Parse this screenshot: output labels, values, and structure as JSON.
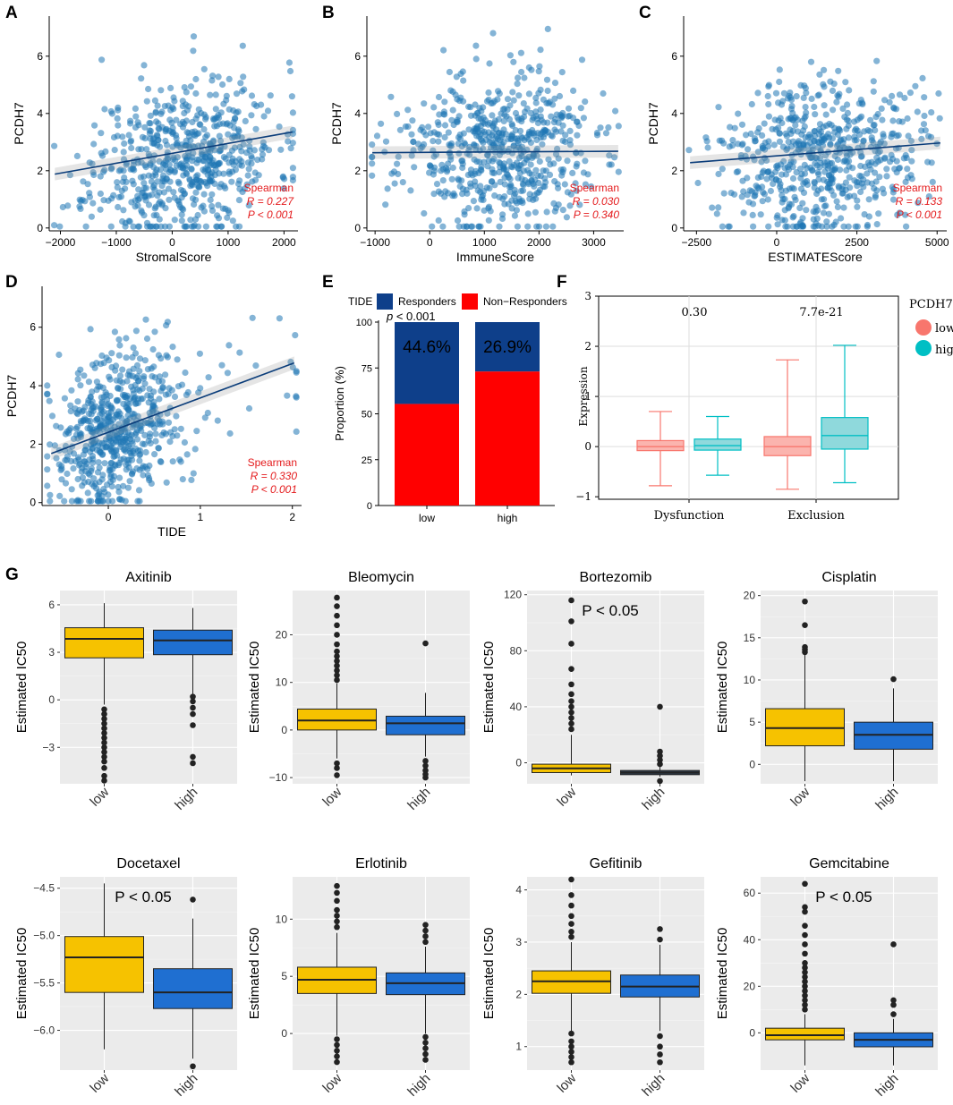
{
  "figure_labels": [
    "A",
    "B",
    "C",
    "D",
    "E",
    "F",
    "G"
  ],
  "colors": {
    "point": "#1f77b4",
    "line": "#0b3d7a",
    "stat": "#e41a1c",
    "responders": "#0e3f8a",
    "non_responders": "#ff0000",
    "box_low": "#f6c200",
    "box_high": "#1f6fd1",
    "box_dark": "#2d3e50",
    "f_low": "#f8766d",
    "f_high": "#00bfc4",
    "panel_bg": "#ebebeb"
  },
  "chart_data": [
    {
      "id": "A",
      "type": "scatter",
      "xlabel": "StromalScore",
      "ylabel": "PCDH7",
      "xlim": [
        -2200,
        2250
      ],
      "ylim": [
        -0.1,
        7.4
      ],
      "xticks": [
        -2000,
        -1000,
        0,
        1000,
        2000
      ],
      "xtick_labels": [
        "−2000",
        "−1000",
        "0",
        "1000",
        "2000"
      ],
      "yticks": [
        0,
        2,
        4,
        6
      ],
      "ytick_labels": [
        "0",
        "2",
        "4",
        "6"
      ],
      "x_center": 200,
      "x_sd": 820,
      "n_points": 620,
      "seed": 11,
      "y_slope": 0.00034,
      "y_intercept": 2.45,
      "fit": {
        "x": [
          -2100,
          2150
        ],
        "y": [
          1.88,
          3.35
        ]
      },
      "stats": {
        "method": "Spearman",
        "R": "R = 0.227",
        "P": "P < 0.001"
      }
    },
    {
      "id": "B",
      "type": "scatter",
      "xlabel": "ImmuneScore",
      "ylabel": "PCDH7",
      "xlim": [
        -1150,
        3550
      ],
      "ylim": [
        -0.1,
        7.4
      ],
      "xticks": [
        -1000,
        0,
        1000,
        2000,
        3000
      ],
      "xtick_labels": [
        "−1000",
        "0",
        "1000",
        "2000",
        "3000"
      ],
      "yticks": [
        0,
        2,
        4,
        6
      ],
      "ytick_labels": [
        "0",
        "2",
        "4",
        "6"
      ],
      "x_center": 1200,
      "x_sd": 900,
      "n_points": 620,
      "seed": 23,
      "y_slope": 2e-05,
      "y_intercept": 2.65,
      "fit": {
        "x": [
          -1050,
          3450
        ],
        "y": [
          2.63,
          2.68
        ]
      },
      "stats": {
        "method": "Spearman",
        "R": "R = 0.030",
        "P": "P = 0.340"
      }
    },
    {
      "id": "C",
      "type": "scatter",
      "xlabel": "ESTIMATEScore",
      "ylabel": "PCDH7",
      "xlim": [
        -2900,
        5300
      ],
      "ylim": [
        -0.1,
        7.4
      ],
      "xticks": [
        -2500,
        0,
        2500,
        5000
      ],
      "xtick_labels": [
        "−2500",
        "0",
        "2500",
        "5000"
      ],
      "yticks": [
        0,
        2,
        4,
        6
      ],
      "ytick_labels": [
        "0",
        "2",
        "4",
        "6"
      ],
      "x_center": 1400,
      "x_sd": 1500,
      "n_points": 620,
      "seed": 37,
      "y_slope": 9e-05,
      "y_intercept": 2.55,
      "fit": {
        "x": [
          -2700,
          5100
        ],
        "y": [
          2.28,
          2.97
        ]
      },
      "stats": {
        "method": "Spearman",
        "R": "R = 0.133",
        "P": "P < 0.001"
      }
    },
    {
      "id": "D",
      "type": "scatter",
      "xlabel": "TIDE",
      "ylabel": "PCDH7",
      "xlim": [
        -0.72,
        2.1
      ],
      "ylim": [
        -0.1,
        7.4
      ],
      "xticks": [
        0,
        1,
        2
      ],
      "xtick_labels": [
        "0",
        "1",
        "2"
      ],
      "yticks": [
        0,
        2,
        4,
        6
      ],
      "ytick_labels": [
        "0",
        "2",
        "4",
        "6"
      ],
      "x_center": 0.05,
      "x_sd": 0.32,
      "n_points": 620,
      "seed": 53,
      "y_slope": 1.15,
      "y_intercept": 2.45,
      "fit": {
        "x": [
          -0.62,
          2.02
        ],
        "y": [
          1.68,
          4.78
        ]
      },
      "stats": {
        "method": "Spearman",
        "R": "R = 0.330",
        "P": "P < 0.001"
      }
    },
    {
      "id": "E",
      "type": "bar",
      "legend_title": "TIDE",
      "legend": [
        "Responders",
        "Non−Responders"
      ],
      "categories": [
        "low",
        "high"
      ],
      "series": [
        {
          "name": "Responders",
          "values": [
            44.6,
            26.9
          ]
        },
        {
          "name": "Non−Responders",
          "values": [
            55.4,
            73.1
          ]
        }
      ],
      "bar_labels": [
        "44.6%",
        "26.9%"
      ],
      "ylabel": "Proportion (%)",
      "ylim": [
        0,
        100
      ],
      "yticks": [
        0,
        25,
        50,
        75,
        100
      ],
      "ytick_labels": [
        "0",
        "25",
        "50",
        "75",
        "100"
      ],
      "annotation_p": "p",
      "annotation_rest": " < 0.001"
    },
    {
      "id": "F",
      "type": "box",
      "categories": [
        "Dysfunction",
        "Exclusion"
      ],
      "legend_title": "PCDH7",
      "groups": [
        "low",
        "high"
      ],
      "ylabel": "Expression",
      "ylim": [
        -1.05,
        3.0
      ],
      "yticks": [
        -1,
        0,
        1,
        2,
        3
      ],
      "ytick_labels": [
        "−1",
        "0",
        "1",
        "2",
        "3"
      ],
      "pvalues": [
        "0.30",
        "7.7e-21"
      ],
      "boxes": [
        {
          "category": "Dysfunction",
          "group": "low",
          "min": -0.78,
          "q1": -0.08,
          "median": 0.0,
          "q3": 0.12,
          "max": 0.7
        },
        {
          "category": "Dysfunction",
          "group": "high",
          "min": -0.57,
          "q1": -0.07,
          "median": 0.02,
          "q3": 0.15,
          "max": 0.6
        },
        {
          "category": "Exclusion",
          "group": "low",
          "min": -0.85,
          "q1": -0.18,
          "median": 0.0,
          "q3": 0.2,
          "max": 1.73
        },
        {
          "category": "Exclusion",
          "group": "high",
          "min": -0.72,
          "q1": -0.05,
          "median": 0.22,
          "q3": 0.58,
          "max": 2.02
        }
      ]
    },
    {
      "id": "G",
      "type": "box",
      "ylabel": "Estimated IC50",
      "panels": [
        {
          "title": "Axitinib",
          "ylim": [
            -5.3,
            6.9
          ],
          "yticks": [
            -3,
            0,
            3,
            6
          ],
          "ytick_labels": [
            "−3",
            "0",
            "3",
            "6"
          ],
          "boxes": [
            {
              "group": "low",
              "min": -0.3,
              "q1": 2.65,
              "median": 3.85,
              "q3": 4.55,
              "max": 6.1,
              "outliers": [
                -0.6,
                -0.9,
                -1.2,
                -1.5,
                -1.8,
                -2.1,
                -2.4,
                -2.7,
                -3.0,
                -3.3,
                -3.6,
                -3.9,
                -4.3,
                -4.8,
                -5.1
              ]
            },
            {
              "group": "high",
              "min": 0.3,
              "q1": 2.85,
              "median": 3.75,
              "q3": 4.4,
              "max": 5.8,
              "outliers": [
                0.2,
                -0.1,
                -0.5,
                -0.9,
                -1.6,
                -3.6,
                -4.0
              ]
            }
          ]
        },
        {
          "title": "Bleomycin",
          "ylim": [
            -11.3,
            29.3
          ],
          "yticks": [
            -10,
            0,
            10,
            20
          ],
          "ytick_labels": [
            "−10",
            "0",
            "10",
            "20"
          ],
          "boxes": [
            {
              "group": "low",
              "min": -6.0,
              "q1": 0.0,
              "median": 2.0,
              "q3": 4.4,
              "max": 9.8,
              "outliers": [
                10.5,
                11.5,
                12.5,
                13.5,
                14.5,
                15.5,
                16.5,
                18.0,
                20.0,
                22.0,
                24.0,
                26.0,
                27.8,
                -7.0,
                -8.0,
                -9.5
              ]
            },
            {
              "group": "high",
              "min": -5.6,
              "q1": -1.0,
              "median": 1.4,
              "q3": 2.9,
              "max": 7.8,
              "outliers": [
                18.2,
                -6.5,
                -7.5,
                -8.5,
                -9.3,
                -10.0
              ]
            }
          ]
        },
        {
          "title": "Bortezomib",
          "ylim": [
            -15,
            123
          ],
          "yticks": [
            0,
            40,
            80,
            120
          ],
          "ytick_labels": [
            "0",
            "40",
            "80",
            "120"
          ],
          "pvalue": "P < 0.05",
          "boxes": [
            {
              "group": "low",
              "min": -9,
              "q1": -7,
              "median": -4,
              "q3": -1,
              "max": 20,
              "outliers": [
                24,
                28,
                32,
                36,
                40,
                44,
                49,
                56,
                67,
                85,
                101,
                116
              ]
            },
            {
              "group": "high",
              "min": -10,
              "q1": -8.5,
              "median": -7,
              "q3": -5.5,
              "max": -3,
              "dark": true,
              "outliers": [
                -1,
                2,
                5,
                8,
                40,
                -13
              ]
            }
          ]
        },
        {
          "title": "Cisplatin",
          "ylim": [
            -2.3,
            20.6
          ],
          "yticks": [
            0,
            5,
            10,
            15,
            20
          ],
          "ytick_labels": [
            "0",
            "5",
            "10",
            "15",
            "20"
          ],
          "boxes": [
            {
              "group": "low",
              "min": -2.0,
              "q1": 2.2,
              "median": 4.3,
              "q3": 6.6,
              "max": 13.0,
              "outliers": [
                13.3,
                13.6,
                13.9,
                16.5,
                19.3
              ]
            },
            {
              "group": "high",
              "min": -2.0,
              "q1": 1.8,
              "median": 3.5,
              "q3": 5.0,
              "max": 9.0,
              "outliers": [
                10.1
              ]
            }
          ]
        },
        {
          "title": "Docetaxel",
          "ylim": [
            -6.42,
            -4.38
          ],
          "yticks": [
            -6.0,
            -5.5,
            -5.0,
            -4.5
          ],
          "ytick_labels": [
            "−6.0",
            "−5.5",
            "−5.0",
            "−4.5"
          ],
          "pvalue": "P < 0.05",
          "boxes": [
            {
              "group": "low",
              "min": -6.2,
              "q1": -5.6,
              "median": -5.23,
              "q3": -5.01,
              "max": -4.45,
              "outliers": []
            },
            {
              "group": "high",
              "min": -6.3,
              "q1": -5.77,
              "median": -5.6,
              "q3": -5.35,
              "max": -4.82,
              "outliers": [
                -4.62,
                -6.38
              ]
            }
          ]
        },
        {
          "title": "Erlotinib",
          "ylim": [
            -3.2,
            13.7
          ],
          "yticks": [
            0,
            5,
            10
          ],
          "ytick_labels": [
            "0",
            "5",
            "10"
          ],
          "boxes": [
            {
              "group": "low",
              "min": -0.2,
              "q1": 3.5,
              "median": 4.7,
              "q3": 5.8,
              "max": 8.8,
              "outliers": [
                9.3,
                9.8,
                10.3,
                10.8,
                11.6,
                12.3,
                12.9,
                -0.5,
                -1.0,
                -1.5,
                -2.0,
                -2.5
              ]
            },
            {
              "group": "high",
              "min": 0.0,
              "q1": 3.4,
              "median": 4.4,
              "q3": 5.3,
              "max": 7.6,
              "outliers": [
                8.0,
                8.5,
                9.0,
                9.5,
                -0.3,
                -0.8,
                -1.3,
                -1.8,
                -2.3
              ]
            }
          ]
        },
        {
          "title": "Gefitinib",
          "ylim": [
            0.55,
            4.25
          ],
          "yticks": [
            1,
            2,
            3,
            4
          ],
          "ytick_labels": [
            "1",
            "2",
            "3",
            "4"
          ],
          "boxes": [
            {
              "group": "low",
              "min": 1.3,
              "q1": 2.02,
              "median": 2.25,
              "q3": 2.45,
              "max": 3.0,
              "outliers": [
                3.1,
                3.2,
                3.35,
                3.5,
                3.7,
                3.9,
                4.2,
                1.25,
                1.1,
                1.0,
                0.9,
                0.8,
                0.7
              ]
            },
            {
              "group": "high",
              "min": 1.3,
              "q1": 1.95,
              "median": 2.15,
              "q3": 2.37,
              "max": 2.95,
              "outliers": [
                3.05,
                3.25,
                1.2,
                1.0,
                0.85,
                0.7
              ]
            }
          ]
        },
        {
          "title": "Gemcitabine",
          "ylim": [
            -16,
            67
          ],
          "yticks": [
            0,
            20,
            40,
            60
          ],
          "ytick_labels": [
            "0",
            "20",
            "40",
            "60"
          ],
          "pvalue": "P < 0.05",
          "boxes": [
            {
              "group": "low",
              "min": -14,
              "q1": -3,
              "median": -1,
              "q3": 2,
              "max": 8,
              "outliers": [
                10,
                12,
                14,
                16,
                18,
                20,
                22,
                24,
                26,
                28,
                30,
                34,
                38,
                42,
                46,
                52,
                54,
                64
              ]
            },
            {
              "group": "high",
              "min": -14,
              "q1": -6,
              "median": -3,
              "q3": 0,
              "max": 6,
              "outliers": [
                8,
                12,
                14,
                38
              ]
            }
          ]
        }
      ],
      "categories": [
        "low",
        "high"
      ]
    }
  ]
}
